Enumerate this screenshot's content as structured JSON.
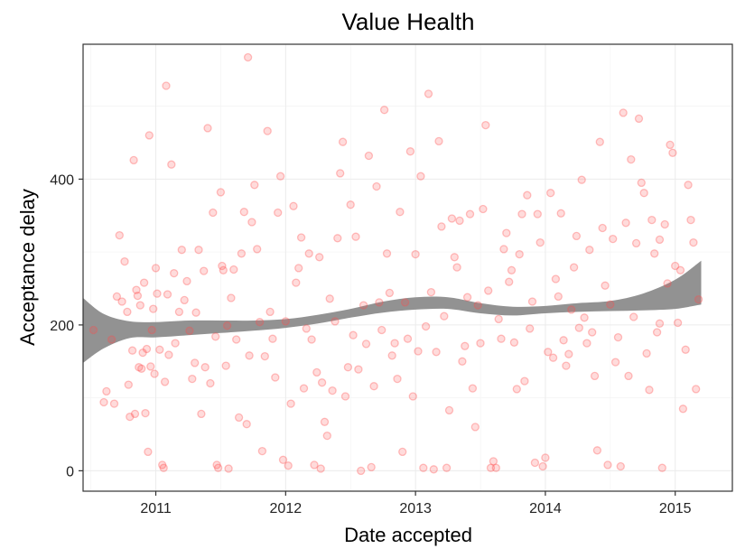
{
  "chart_data": {
    "type": "scatter",
    "title": "Value Health",
    "xlabel": "Date accepted",
    "ylabel": "Acceptance delay",
    "xlim": [
      2010.44,
      2015.44
    ],
    "ylim": [
      -28,
      585
    ],
    "xticks": [
      2011,
      2012,
      2013,
      2014,
      2015
    ],
    "xtick_labels": [
      "2011",
      "2012",
      "2013",
      "2014",
      "2015"
    ],
    "yticks": [
      0,
      200,
      400
    ],
    "ytick_labels": [
      "0",
      "200",
      "400"
    ],
    "grid": true,
    "legend": "none",
    "colors": {
      "points": "#ff4d4d",
      "band": "#8c8c8c",
      "smooth": "#3366ff"
    },
    "points": [
      [
        2010.52,
        193
      ],
      [
        2010.6,
        94
      ],
      [
        2010.62,
        109
      ],
      [
        2010.66,
        180
      ],
      [
        2010.68,
        92
      ],
      [
        2010.7,
        239
      ],
      [
        2010.72,
        323
      ],
      [
        2010.74,
        232
      ],
      [
        2010.76,
        287
      ],
      [
        2010.78,
        218
      ],
      [
        2010.79,
        118
      ],
      [
        2010.8,
        74
      ],
      [
        2010.82,
        165
      ],
      [
        2010.83,
        426
      ],
      [
        2010.84,
        78
      ],
      [
        2010.85,
        248
      ],
      [
        2010.86,
        240
      ],
      [
        2010.87,
        142
      ],
      [
        2010.88,
        227
      ],
      [
        2010.89,
        140
      ],
      [
        2010.9,
        162
      ],
      [
        2010.91,
        258
      ],
      [
        2010.92,
        79
      ],
      [
        2010.93,
        167
      ],
      [
        2010.94,
        26
      ],
      [
        2010.95,
        460
      ],
      [
        2010.96,
        143
      ],
      [
        2010.97,
        193
      ],
      [
        2010.98,
        222
      ],
      [
        2010.99,
        133
      ],
      [
        2011.0,
        278
      ],
      [
        2011.01,
        243
      ],
      [
        2011.03,
        166
      ],
      [
        2011.05,
        8
      ],
      [
        2011.06,
        4
      ],
      [
        2011.07,
        122
      ],
      [
        2011.08,
        528
      ],
      [
        2011.09,
        242
      ],
      [
        2011.1,
        159
      ],
      [
        2011.12,
        420
      ],
      [
        2011.14,
        271
      ],
      [
        2011.15,
        175
      ],
      [
        2011.18,
        218
      ],
      [
        2011.2,
        303
      ],
      [
        2011.22,
        234
      ],
      [
        2011.24,
        260
      ],
      [
        2011.26,
        192
      ],
      [
        2011.28,
        126
      ],
      [
        2011.3,
        148
      ],
      [
        2011.31,
        217
      ],
      [
        2011.33,
        303
      ],
      [
        2011.35,
        78
      ],
      [
        2011.37,
        274
      ],
      [
        2011.38,
        142
      ],
      [
        2011.4,
        470
      ],
      [
        2011.42,
        120
      ],
      [
        2011.44,
        354
      ],
      [
        2011.46,
        184
      ],
      [
        2011.47,
        8
      ],
      [
        2011.48,
        4
      ],
      [
        2011.5,
        382
      ],
      [
        2011.51,
        281
      ],
      [
        2011.52,
        275
      ],
      [
        2011.54,
        144
      ],
      [
        2011.55,
        199
      ],
      [
        2011.56,
        3
      ],
      [
        2011.58,
        237
      ],
      [
        2011.6,
        276
      ],
      [
        2011.62,
        180
      ],
      [
        2011.64,
        73
      ],
      [
        2011.66,
        298
      ],
      [
        2011.68,
        355
      ],
      [
        2011.7,
        64
      ],
      [
        2011.71,
        567
      ],
      [
        2011.72,
        158
      ],
      [
        2011.74,
        341
      ],
      [
        2011.76,
        392
      ],
      [
        2011.78,
        304
      ],
      [
        2011.8,
        204
      ],
      [
        2011.82,
        27
      ],
      [
        2011.84,
        157
      ],
      [
        2011.86,
        466
      ],
      [
        2011.88,
        218
      ],
      [
        2011.9,
        181
      ],
      [
        2011.92,
        128
      ],
      [
        2011.94,
        354
      ],
      [
        2011.96,
        404
      ],
      [
        2011.98,
        15
      ],
      [
        2012.0,
        205
      ],
      [
        2012.02,
        7
      ],
      [
        2012.04,
        92
      ],
      [
        2012.06,
        363
      ],
      [
        2012.08,
        258
      ],
      [
        2012.1,
        278
      ],
      [
        2012.12,
        320
      ],
      [
        2012.14,
        113
      ],
      [
        2012.16,
        195
      ],
      [
        2012.18,
        298
      ],
      [
        2012.2,
        180
      ],
      [
        2012.22,
        8
      ],
      [
        2012.24,
        135
      ],
      [
        2012.26,
        293
      ],
      [
        2012.27,
        3
      ],
      [
        2012.28,
        121
      ],
      [
        2012.3,
        67
      ],
      [
        2012.32,
        48
      ],
      [
        2012.34,
        236
      ],
      [
        2012.36,
        110
      ],
      [
        2012.38,
        205
      ],
      [
        2012.4,
        319
      ],
      [
        2012.42,
        408
      ],
      [
        2012.44,
        451
      ],
      [
        2012.46,
        102
      ],
      [
        2012.48,
        142
      ],
      [
        2012.5,
        365
      ],
      [
        2012.52,
        186
      ],
      [
        2012.54,
        321
      ],
      [
        2012.56,
        139
      ],
      [
        2012.58,
        0
      ],
      [
        2012.6,
        227
      ],
      [
        2012.62,
        174
      ],
      [
        2012.64,
        432
      ],
      [
        2012.66,
        5
      ],
      [
        2012.68,
        116
      ],
      [
        2012.7,
        390
      ],
      [
        2012.72,
        231
      ],
      [
        2012.74,
        193
      ],
      [
        2012.76,
        495
      ],
      [
        2012.78,
        298
      ],
      [
        2012.8,
        244
      ],
      [
        2012.82,
        158
      ],
      [
        2012.84,
        175
      ],
      [
        2012.86,
        126
      ],
      [
        2012.88,
        355
      ],
      [
        2012.9,
        26
      ],
      [
        2012.92,
        231
      ],
      [
        2012.94,
        181
      ],
      [
        2012.96,
        438
      ],
      [
        2012.98,
        102
      ],
      [
        2013.0,
        297
      ],
      [
        2013.02,
        164
      ],
      [
        2013.04,
        404
      ],
      [
        2013.06,
        4
      ],
      [
        2013.08,
        198
      ],
      [
        2013.1,
        517
      ],
      [
        2013.12,
        245
      ],
      [
        2013.14,
        2
      ],
      [
        2013.16,
        163
      ],
      [
        2013.18,
        452
      ],
      [
        2013.2,
        335
      ],
      [
        2013.22,
        212
      ],
      [
        2013.24,
        4
      ],
      [
        2013.26,
        83
      ],
      [
        2013.28,
        346
      ],
      [
        2013.3,
        293
      ],
      [
        2013.32,
        279
      ],
      [
        2013.34,
        343
      ],
      [
        2013.36,
        150
      ],
      [
        2013.38,
        171
      ],
      [
        2013.4,
        238
      ],
      [
        2013.42,
        352
      ],
      [
        2013.44,
        113
      ],
      [
        2013.46,
        60
      ],
      [
        2013.48,
        227
      ],
      [
        2013.5,
        175
      ],
      [
        2013.52,
        359
      ],
      [
        2013.54,
        474
      ],
      [
        2013.56,
        247
      ],
      [
        2013.58,
        4
      ],
      [
        2013.6,
        13
      ],
      [
        2013.62,
        4
      ],
      [
        2013.64,
        208
      ],
      [
        2013.66,
        181
      ],
      [
        2013.68,
        304
      ],
      [
        2013.7,
        326
      ],
      [
        2013.72,
        259
      ],
      [
        2013.74,
        275
      ],
      [
        2013.76,
        176
      ],
      [
        2013.78,
        112
      ],
      [
        2013.8,
        297
      ],
      [
        2013.82,
        352
      ],
      [
        2013.84,
        123
      ],
      [
        2013.86,
        378
      ],
      [
        2013.88,
        195
      ],
      [
        2013.9,
        232
      ],
      [
        2013.92,
        11
      ],
      [
        2013.94,
        352
      ],
      [
        2013.96,
        313
      ],
      [
        2013.98,
        6
      ],
      [
        2014.0,
        18
      ],
      [
        2014.02,
        163
      ],
      [
        2014.04,
        381
      ],
      [
        2014.06,
        155
      ],
      [
        2014.08,
        263
      ],
      [
        2014.1,
        239
      ],
      [
        2014.12,
        353
      ],
      [
        2014.14,
        179
      ],
      [
        2014.16,
        144
      ],
      [
        2014.18,
        160
      ],
      [
        2014.2,
        221
      ],
      [
        2014.22,
        279
      ],
      [
        2014.24,
        322
      ],
      [
        2014.26,
        196
      ],
      [
        2014.28,
        399
      ],
      [
        2014.3,
        210
      ],
      [
        2014.32,
        175
      ],
      [
        2014.34,
        303
      ],
      [
        2014.36,
        190
      ],
      [
        2014.38,
        130
      ],
      [
        2014.4,
        28
      ],
      [
        2014.42,
        451
      ],
      [
        2014.44,
        333
      ],
      [
        2014.46,
        254
      ],
      [
        2014.48,
        8
      ],
      [
        2014.5,
        228
      ],
      [
        2014.52,
        318
      ],
      [
        2014.54,
        149
      ],
      [
        2014.56,
        183
      ],
      [
        2014.58,
        6
      ],
      [
        2014.6,
        491
      ],
      [
        2014.62,
        340
      ],
      [
        2014.64,
        130
      ],
      [
        2014.66,
        427
      ],
      [
        2014.68,
        211
      ],
      [
        2014.7,
        312
      ],
      [
        2014.72,
        483
      ],
      [
        2014.74,
        395
      ],
      [
        2014.76,
        381
      ],
      [
        2014.78,
        161
      ],
      [
        2014.8,
        111
      ],
      [
        2014.82,
        344
      ],
      [
        2014.84,
        298
      ],
      [
        2014.86,
        190
      ],
      [
        2014.88,
        317
      ],
      [
        2014.9,
        4
      ],
      [
        2014.92,
        338
      ],
      [
        2014.94,
        257
      ],
      [
        2014.96,
        447
      ],
      [
        2014.98,
        436
      ],
      [
        2015.0,
        281
      ],
      [
        2015.02,
        203
      ],
      [
        2015.04,
        275
      ],
      [
        2015.06,
        85
      ],
      [
        2015.08,
        166
      ],
      [
        2015.1,
        392
      ],
      [
        2015.12,
        344
      ],
      [
        2015.14,
        313
      ],
      [
        2015.16,
        112
      ],
      [
        2015.18,
        235
      ],
      [
        2014.88,
        202
      ]
    ],
    "smooth": {
      "x": [
        2010.44,
        2010.6,
        2010.8,
        2011.0,
        2011.25,
        2011.5,
        2011.75,
        2012.0,
        2012.25,
        2012.5,
        2012.75,
        2013.0,
        2013.25,
        2013.5,
        2013.75,
        2014.0,
        2014.25,
        2014.5,
        2014.75,
        2015.0,
        2015.2
      ],
      "lower": [
        148,
        168,
        182,
        183,
        186,
        189,
        192,
        196,
        202,
        210,
        217,
        221,
        222,
        216,
        213,
        216,
        218,
        219,
        220,
        222,
        228
      ],
      "upper": [
        237,
        215,
        205,
        204,
        206,
        206,
        206,
        208,
        214,
        222,
        232,
        238,
        238,
        230,
        225,
        226,
        230,
        233,
        243,
        262,
        288
      ]
    }
  }
}
